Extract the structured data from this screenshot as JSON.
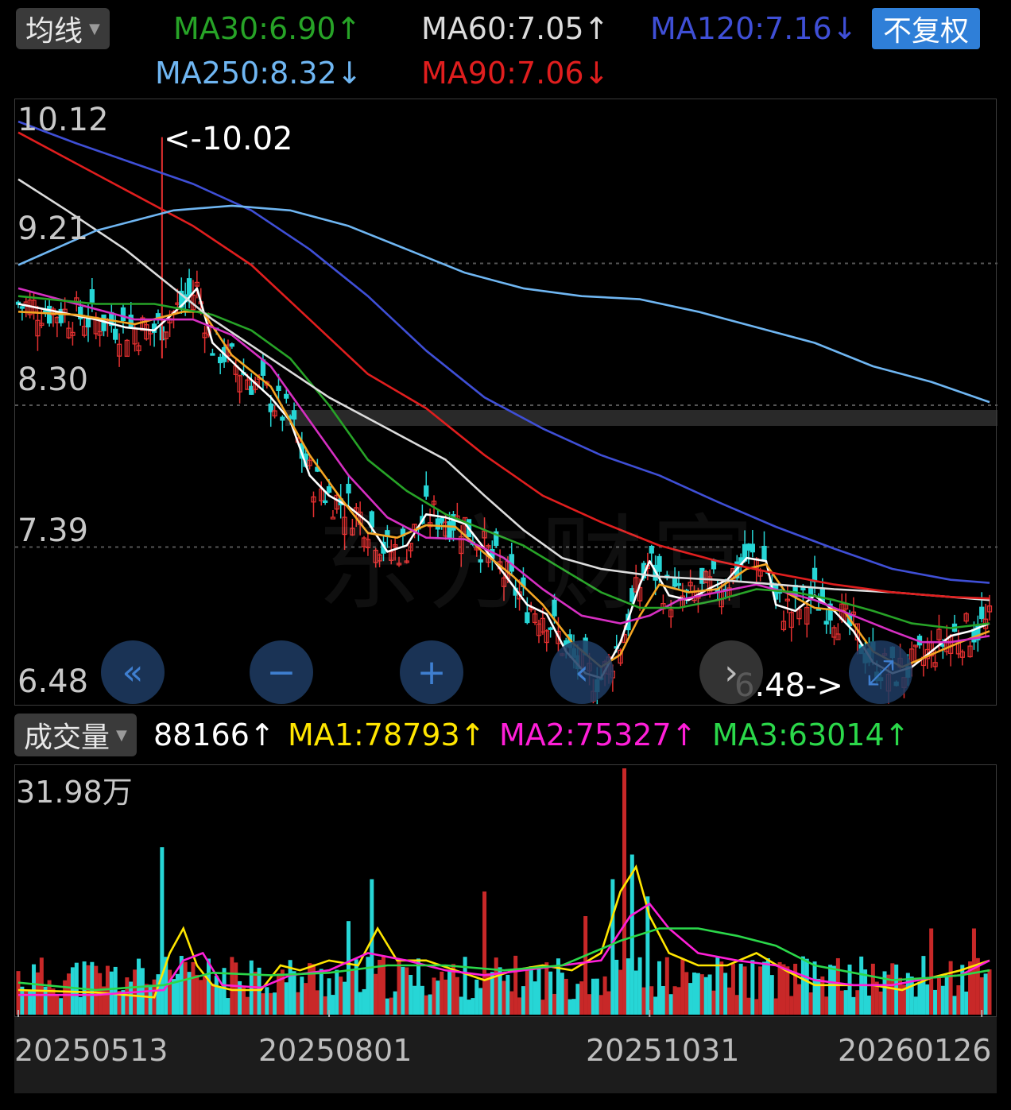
{
  "header": {
    "ma_button_label": "均线",
    "fq_button_label": "不复权",
    "ma_indicators": [
      {
        "label": "MA30:6.90↑",
        "color": "#27a327"
      },
      {
        "label": "MA60:7.05↑",
        "color": "#dcdcdc"
      },
      {
        "label": "MA120:7.16↓",
        "color": "#3f4fd6"
      },
      {
        "label": "MA250:8.32↓",
        "color": "#6fb6f2"
      },
      {
        "label": "MA90:7.06↓",
        "color": "#e01e1e"
      }
    ]
  },
  "price_chart": {
    "y_ticks": [
      "10.12",
      "9.21",
      "8.30",
      "7.39",
      "6.48"
    ],
    "annotation_high": "<-10.02",
    "annotation_low": "6.48->",
    "watermark": "东方财富"
  },
  "nav_buttons": [
    {
      "name": "scroll-left-fast-icon",
      "glyph": "«"
    },
    {
      "name": "zoom-out-icon",
      "glyph": "−"
    },
    {
      "name": "zoom-in-icon",
      "glyph": "+"
    },
    {
      "name": "scroll-left-icon",
      "glyph": "‹"
    },
    {
      "name": "scroll-right-icon",
      "glyph": "›"
    },
    {
      "name": "fullscreen-icon",
      "glyph": "⤢"
    }
  ],
  "volume": {
    "button_label": "成交量",
    "current": "88166↑",
    "ma1": "MA1:78793↑",
    "ma2": "MA2:75327↑",
    "ma3": "MA3:63014↑",
    "max_label": "31.98万"
  },
  "x_axis": {
    "labels": [
      "20250513",
      "20250801",
      "20251031",
      "20260126"
    ]
  },
  "chart_data": {
    "type": "candlestick",
    "ylim": [
      6.48,
      10.12
    ],
    "volume_ylim": [
      0,
      319800
    ],
    "high_marker": 10.02,
    "low_marker": 6.48,
    "ma_lines": {
      "MA5": {
        "color": "#ffffff",
        "points": [
          [
            0,
            8.95
          ],
          [
            20,
            8.9
          ],
          [
            40,
            8.85
          ],
          [
            55,
            8.8
          ],
          [
            70,
            8.78
          ],
          [
            85,
            8.95
          ],
          [
            92,
            9.05
          ],
          [
            100,
            8.7
          ],
          [
            115,
            8.52
          ],
          [
            130,
            8.35
          ],
          [
            140,
            8.2
          ],
          [
            150,
            7.85
          ],
          [
            160,
            7.72
          ],
          [
            170,
            7.65
          ],
          [
            180,
            7.55
          ],
          [
            190,
            7.36
          ],
          [
            200,
            7.4
          ],
          [
            210,
            7.6
          ],
          [
            220,
            7.58
          ],
          [
            230,
            7.54
          ],
          [
            240,
            7.38
          ],
          [
            250,
            7.22
          ],
          [
            262,
            7.02
          ],
          [
            272,
            6.96
          ],
          [
            282,
            6.72
          ],
          [
            292,
            6.58
          ],
          [
            300,
            6.55
          ],
          [
            310,
            6.78
          ],
          [
            320,
            7.15
          ],
          [
            325,
            7.3
          ],
          [
            335,
            7.08
          ],
          [
            345,
            7.05
          ],
          [
            355,
            7.12
          ],
          [
            365,
            7.18
          ],
          [
            375,
            7.32
          ],
          [
            385,
            7.3
          ],
          [
            390,
            7.02
          ],
          [
            400,
            6.98
          ],
          [
            410,
            7.08
          ],
          [
            420,
            6.98
          ],
          [
            430,
            6.85
          ],
          [
            440,
            6.65
          ],
          [
            450,
            6.58
          ],
          [
            460,
            6.62
          ],
          [
            470,
            6.72
          ],
          [
            480,
            6.82
          ],
          [
            490,
            6.85
          ],
          [
            500,
            6.9
          ]
        ]
      },
      "MA10": {
        "color": "#f5a623",
        "points": [
          [
            0,
            8.9
          ],
          [
            30,
            8.88
          ],
          [
            60,
            8.82
          ],
          [
            85,
            8.9
          ],
          [
            95,
            8.9
          ],
          [
            110,
            8.62
          ],
          [
            130,
            8.42
          ],
          [
            150,
            7.98
          ],
          [
            165,
            7.72
          ],
          [
            180,
            7.48
          ],
          [
            195,
            7.45
          ],
          [
            210,
            7.53
          ],
          [
            225,
            7.52
          ],
          [
            240,
            7.35
          ],
          [
            255,
            7.2
          ],
          [
            270,
            7.02
          ],
          [
            285,
            6.78
          ],
          [
            300,
            6.62
          ],
          [
            310,
            6.7
          ],
          [
            320,
            6.95
          ],
          [
            330,
            7.15
          ],
          [
            345,
            7.1
          ],
          [
            360,
            7.12
          ],
          [
            375,
            7.25
          ],
          [
            385,
            7.28
          ],
          [
            395,
            7.1
          ],
          [
            410,
            7.0
          ],
          [
            425,
            6.98
          ],
          [
            440,
            6.72
          ],
          [
            455,
            6.62
          ],
          [
            470,
            6.7
          ],
          [
            485,
            6.78
          ],
          [
            500,
            6.85
          ]
        ]
      },
      "MA20": {
        "color": "#d62fc2",
        "points": [
          [
            0,
            9.05
          ],
          [
            30,
            8.95
          ],
          [
            60,
            8.85
          ],
          [
            90,
            8.85
          ],
          [
            110,
            8.75
          ],
          [
            130,
            8.55
          ],
          [
            150,
            8.2
          ],
          [
            170,
            7.85
          ],
          [
            190,
            7.58
          ],
          [
            210,
            7.45
          ],
          [
            230,
            7.44
          ],
          [
            250,
            7.32
          ],
          [
            270,
            7.12
          ],
          [
            290,
            6.95
          ],
          [
            310,
            6.9
          ],
          [
            325,
            6.95
          ],
          [
            340,
            7.05
          ],
          [
            360,
            7.1
          ],
          [
            380,
            7.15
          ],
          [
            395,
            7.1
          ],
          [
            410,
            7.05
          ],
          [
            430,
            6.95
          ],
          [
            450,
            6.85
          ],
          [
            465,
            6.78
          ],
          [
            480,
            6.78
          ],
          [
            500,
            6.82
          ]
        ]
      },
      "MA30": {
        "color": "#27a327",
        "points": [
          [
            0,
            9.0
          ],
          [
            40,
            8.95
          ],
          [
            70,
            8.95
          ],
          [
            100,
            8.88
          ],
          [
            120,
            8.78
          ],
          [
            140,
            8.6
          ],
          [
            160,
            8.3
          ],
          [
            180,
            7.95
          ],
          [
            200,
            7.75
          ],
          [
            220,
            7.6
          ],
          [
            240,
            7.5
          ],
          [
            260,
            7.4
          ],
          [
            280,
            7.25
          ],
          [
            300,
            7.1
          ],
          [
            320,
            7.0
          ],
          [
            340,
            7.0
          ],
          [
            360,
            7.05
          ],
          [
            380,
            7.12
          ],
          [
            400,
            7.1
          ],
          [
            420,
            7.05
          ],
          [
            440,
            6.98
          ],
          [
            460,
            6.9
          ],
          [
            480,
            6.87
          ],
          [
            500,
            6.9
          ]
        ]
      },
      "MA60": {
        "color": "#dcdcdc",
        "points": [
          [
            0,
            9.75
          ],
          [
            25,
            9.55
          ],
          [
            55,
            9.3
          ],
          [
            80,
            9.05
          ],
          [
            100,
            8.85
          ],
          [
            130,
            8.6
          ],
          [
            160,
            8.35
          ],
          [
            190,
            8.15
          ],
          [
            220,
            7.95
          ],
          [
            240,
            7.72
          ],
          [
            260,
            7.5
          ],
          [
            280,
            7.32
          ],
          [
            300,
            7.25
          ],
          [
            330,
            7.2
          ],
          [
            360,
            7.18
          ],
          [
            390,
            7.15
          ],
          [
            420,
            7.12
          ],
          [
            450,
            7.1
          ],
          [
            480,
            7.07
          ],
          [
            500,
            7.05
          ]
        ]
      },
      "MA90": {
        "color": "#e01e1e",
        "points": [
          [
            0,
            10.05
          ],
          [
            30,
            9.85
          ],
          [
            60,
            9.65
          ],
          [
            90,
            9.45
          ],
          [
            120,
            9.2
          ],
          [
            150,
            8.85
          ],
          [
            180,
            8.5
          ],
          [
            210,
            8.28
          ],
          [
            240,
            7.98
          ],
          [
            270,
            7.72
          ],
          [
            300,
            7.55
          ],
          [
            330,
            7.4
          ],
          [
            360,
            7.3
          ],
          [
            390,
            7.22
          ],
          [
            420,
            7.15
          ],
          [
            450,
            7.1
          ],
          [
            480,
            7.07
          ],
          [
            500,
            7.06
          ]
        ]
      },
      "MA120": {
        "color": "#3f4fd6",
        "points": [
          [
            0,
            10.12
          ],
          [
            30,
            9.98
          ],
          [
            60,
            9.85
          ],
          [
            90,
            9.72
          ],
          [
            120,
            9.55
          ],
          [
            150,
            9.3
          ],
          [
            180,
            9.0
          ],
          [
            210,
            8.65
          ],
          [
            240,
            8.35
          ],
          [
            270,
            8.15
          ],
          [
            300,
            7.98
          ],
          [
            330,
            7.85
          ],
          [
            360,
            7.68
          ],
          [
            390,
            7.52
          ],
          [
            420,
            7.38
          ],
          [
            450,
            7.25
          ],
          [
            480,
            7.18
          ],
          [
            500,
            7.16
          ]
        ]
      },
      "MA250": {
        "color": "#6fb6f2",
        "points": [
          [
            0,
            9.2
          ],
          [
            40,
            9.42
          ],
          [
            80,
            9.55
          ],
          [
            110,
            9.58
          ],
          [
            140,
            9.55
          ],
          [
            170,
            9.45
          ],
          [
            200,
            9.3
          ],
          [
            230,
            9.15
          ],
          [
            260,
            9.05
          ],
          [
            290,
            9.0
          ],
          [
            320,
            8.98
          ],
          [
            350,
            8.9
          ],
          [
            380,
            8.8
          ],
          [
            410,
            8.7
          ],
          [
            440,
            8.55
          ],
          [
            470,
            8.45
          ],
          [
            500,
            8.32
          ]
        ]
      }
    },
    "volume_ma": {
      "MA1": {
        "color": "#ffe600",
        "points": [
          [
            0,
            0.1
          ],
          [
            40,
            0.09
          ],
          [
            70,
            0.07
          ],
          [
            78,
            0.25
          ],
          [
            85,
            0.35
          ],
          [
            92,
            0.2
          ],
          [
            100,
            0.12
          ],
          [
            110,
            0.1
          ],
          [
            125,
            0.1
          ],
          [
            135,
            0.2
          ],
          [
            145,
            0.18
          ],
          [
            160,
            0.22
          ],
          [
            175,
            0.2
          ],
          [
            185,
            0.35
          ],
          [
            195,
            0.22
          ],
          [
            210,
            0.22
          ],
          [
            225,
            0.18
          ],
          [
            240,
            0.14
          ],
          [
            255,
            0.18
          ],
          [
            270,
            0.2
          ],
          [
            285,
            0.18
          ],
          [
            300,
            0.25
          ],
          [
            310,
            0.5
          ],
          [
            318,
            0.6
          ],
          [
            325,
            0.4
          ],
          [
            335,
            0.25
          ],
          [
            350,
            0.2
          ],
          [
            365,
            0.2
          ],
          [
            380,
            0.25
          ],
          [
            395,
            0.18
          ],
          [
            410,
            0.12
          ],
          [
            425,
            0.12
          ],
          [
            440,
            0.12
          ],
          [
            455,
            0.1
          ],
          [
            470,
            0.15
          ],
          [
            485,
            0.18
          ],
          [
            500,
            0.22
          ]
        ]
      },
      "MA2": {
        "color": "#ff1fd8",
        "points": [
          [
            0,
            0.08
          ],
          [
            40,
            0.08
          ],
          [
            75,
            0.1
          ],
          [
            85,
            0.22
          ],
          [
            95,
            0.25
          ],
          [
            105,
            0.12
          ],
          [
            125,
            0.11
          ],
          [
            140,
            0.16
          ],
          [
            160,
            0.18
          ],
          [
            180,
            0.25
          ],
          [
            200,
            0.22
          ],
          [
            220,
            0.18
          ],
          [
            240,
            0.16
          ],
          [
            260,
            0.18
          ],
          [
            280,
            0.2
          ],
          [
            300,
            0.22
          ],
          [
            315,
            0.4
          ],
          [
            325,
            0.45
          ],
          [
            335,
            0.35
          ],
          [
            350,
            0.25
          ],
          [
            370,
            0.22
          ],
          [
            390,
            0.2
          ],
          [
            410,
            0.14
          ],
          [
            430,
            0.12
          ],
          [
            450,
            0.12
          ],
          [
            470,
            0.15
          ],
          [
            485,
            0.16
          ],
          [
            500,
            0.22
          ]
        ]
      },
      "MA3": {
        "color": "#2bd84a",
        "points": [
          [
            0,
            0.13
          ],
          [
            40,
            0.1
          ],
          [
            75,
            0.12
          ],
          [
            100,
            0.17
          ],
          [
            130,
            0.16
          ],
          [
            160,
            0.17
          ],
          [
            190,
            0.2
          ],
          [
            220,
            0.2
          ],
          [
            250,
            0.18
          ],
          [
            280,
            0.2
          ],
          [
            310,
            0.3
          ],
          [
            330,
            0.35
          ],
          [
            350,
            0.35
          ],
          [
            370,
            0.32
          ],
          [
            390,
            0.28
          ],
          [
            410,
            0.2
          ],
          [
            430,
            0.17
          ],
          [
            450,
            0.14
          ],
          [
            470,
            0.15
          ],
          [
            485,
            0.16
          ],
          [
            500,
            0.18
          ]
        ]
      }
    }
  }
}
